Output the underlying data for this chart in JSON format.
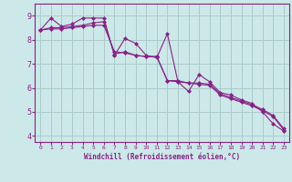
{
  "xlabel": "Windchill (Refroidissement éolien,°C)",
  "bg_color": "#cce8e8",
  "line_color": "#882288",
  "grid_color": "#aacccc",
  "xlim": [
    -0.5,
    23.5
  ],
  "ylim": [
    3.75,
    9.5
  ],
  "xticks": [
    0,
    1,
    2,
    3,
    4,
    5,
    6,
    7,
    8,
    9,
    10,
    11,
    12,
    13,
    14,
    15,
    16,
    17,
    18,
    19,
    20,
    21,
    22,
    23
  ],
  "yticks": [
    4,
    5,
    6,
    7,
    8,
    9
  ],
  "lines": [
    [
      8.4,
      8.9,
      8.55,
      8.65,
      8.9,
      8.9,
      8.9,
      7.35,
      8.05,
      7.85,
      7.35,
      7.25,
      8.25,
      6.25,
      5.85,
      6.55,
      6.25,
      5.8,
      5.7,
      5.5,
      5.35,
      5.0,
      4.5,
      4.2
    ],
    [
      8.4,
      8.5,
      8.5,
      8.55,
      8.6,
      8.7,
      8.75,
      7.4,
      7.5,
      7.35,
      7.3,
      7.3,
      6.3,
      6.3,
      6.2,
      6.2,
      6.15,
      5.75,
      5.6,
      5.45,
      5.3,
      5.1,
      4.85,
      4.3
    ],
    [
      8.4,
      8.45,
      8.45,
      8.5,
      8.55,
      8.6,
      8.6,
      7.5,
      7.45,
      7.35,
      7.3,
      7.3,
      6.3,
      6.25,
      6.2,
      6.15,
      6.1,
      5.7,
      5.55,
      5.4,
      5.25,
      5.05,
      4.8,
      4.25
    ]
  ]
}
